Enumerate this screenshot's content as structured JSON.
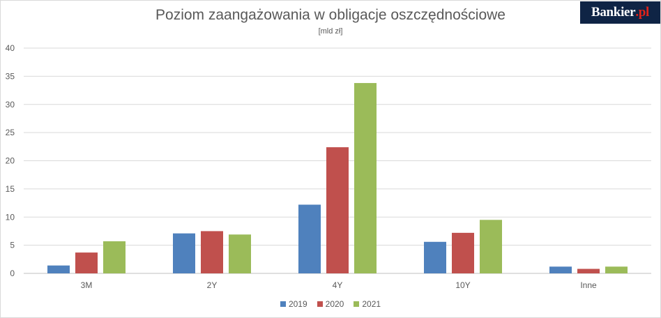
{
  "logo": {
    "main": "Bankier",
    "accent": ".pl"
  },
  "chart_data": {
    "type": "bar",
    "title": "Poziom zaangażowania w obligacje oszczędnościowe",
    "subtitle": "[mld zł]",
    "categories": [
      "3M",
      "2Y",
      "4Y",
      "10Y",
      "Inne"
    ],
    "series": [
      {
        "name": "2019",
        "color": "#4f81bd",
        "values": [
          1.4,
          7.1,
          12.2,
          5.6,
          1.2
        ]
      },
      {
        "name": "2020",
        "color": "#c0504d",
        "values": [
          3.7,
          7.5,
          22.4,
          7.2,
          0.8
        ]
      },
      {
        "name": "2021",
        "color": "#9bbb59",
        "values": [
          5.7,
          6.9,
          33.8,
          9.5,
          1.2
        ]
      }
    ],
    "ylim": [
      0,
      40
    ],
    "yticks": [
      0,
      5,
      10,
      15,
      20,
      25,
      30,
      35,
      40
    ],
    "grid": true,
    "legend_position": "bottom"
  }
}
